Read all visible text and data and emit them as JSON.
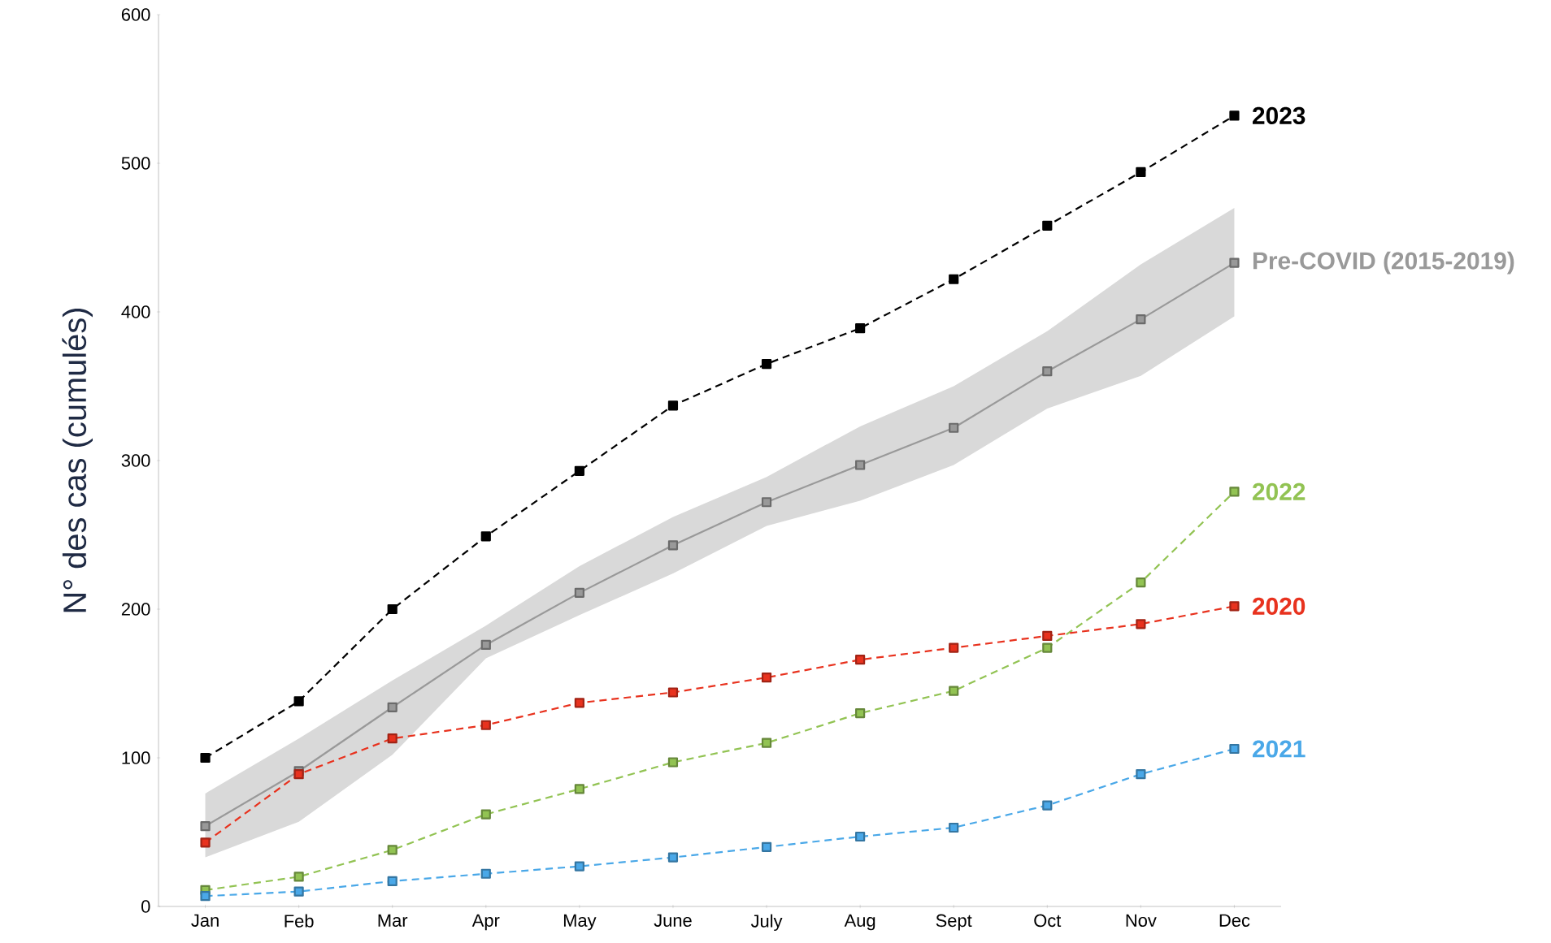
{
  "chart_data": {
    "type": "line",
    "ylabel": "N° des cas (cumulés)",
    "categories": [
      "Jan",
      "Feb",
      "Mar",
      "Apr",
      "May",
      "June",
      "July",
      "Aug",
      "Sept",
      "Oct",
      "Nov",
      "Dec"
    ],
    "ylim": [
      0,
      600
    ],
    "yticks": [
      0,
      100,
      200,
      300,
      400,
      500,
      600
    ],
    "grid": false,
    "marker": "square",
    "series": [
      {
        "name": "2023",
        "color": "#000000",
        "line_style": "dashed",
        "values": [
          100,
          138,
          200,
          249,
          293,
          337,
          365,
          389,
          422,
          458,
          494,
          532
        ]
      },
      {
        "name": "Pre-COVID (2015-2019)",
        "color": "#999999",
        "line_style": "solid",
        "values": [
          54,
          91,
          134,
          176,
          211,
          243,
          272,
          297,
          322,
          360,
          395,
          433
        ],
        "lower": [
          33,
          57,
          102,
          167,
          196,
          224,
          256,
          273,
          297,
          335,
          357,
          397
        ],
        "upper": [
          76,
          113,
          152,
          189,
          229,
          262,
          289,
          323,
          350,
          387,
          432,
          470
        ]
      },
      {
        "name": "2022",
        "color": "#92c353",
        "line_style": "dashed",
        "values": [
          11,
          20,
          38,
          62,
          79,
          97,
          110,
          130,
          145,
          174,
          218,
          279
        ]
      },
      {
        "name": "2020",
        "color": "#e8321e",
        "line_style": "dashed",
        "values": [
          43,
          89,
          113,
          122,
          137,
          144,
          154,
          166,
          174,
          182,
          190,
          202
        ]
      },
      {
        "name": "2021",
        "color": "#4aa8e8",
        "line_style": "dashed",
        "values": [
          7,
          10,
          17,
          22,
          27,
          33,
          40,
          47,
          53,
          68,
          89,
          106
        ]
      }
    ]
  }
}
